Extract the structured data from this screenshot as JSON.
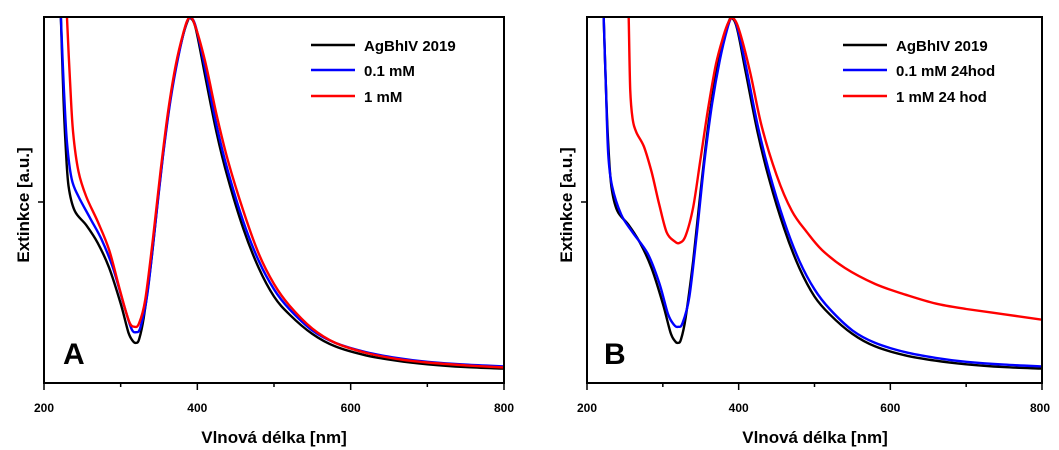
{
  "chart_data": [
    {
      "type": "line",
      "panel_label": "A",
      "xlabel": "Vlnová délka [nm]",
      "ylabel": "Extinkce [a.u.]",
      "xlim": [
        200,
        800
      ],
      "ylim": [
        0,
        1
      ],
      "x_tick_labels": [
        "200",
        "400",
        "600",
        "800"
      ],
      "legend_position": "top-right",
      "series": [
        {
          "name": "AgBhIV 2019",
          "color": "#000000",
          "points": [
            [
              222,
              1.0
            ],
            [
              225,
              0.8
            ],
            [
              228,
              0.65
            ],
            [
              232,
              0.53
            ],
            [
              240,
              0.46
            ],
            [
              255,
              0.42
            ],
            [
              270,
              0.37
            ],
            [
              285,
              0.3
            ],
            [
              300,
              0.2
            ],
            [
              310,
              0.12
            ],
            [
              316,
              0.095
            ],
            [
              320,
              0.09
            ],
            [
              324,
              0.1
            ],
            [
              330,
              0.16
            ],
            [
              340,
              0.32
            ],
            [
              350,
              0.52
            ],
            [
              360,
              0.7
            ],
            [
              370,
              0.84
            ],
            [
              380,
              0.94
            ],
            [
              387,
              0.99
            ],
            [
              391,
              1.0
            ],
            [
              398,
              0.97
            ],
            [
              410,
              0.84
            ],
            [
              425,
              0.68
            ],
            [
              440,
              0.55
            ],
            [
              460,
              0.41
            ],
            [
              480,
              0.3
            ],
            [
              500,
              0.22
            ],
            [
              520,
              0.17
            ],
            [
              550,
              0.115
            ],
            [
              580,
              0.08
            ],
            [
              620,
              0.055
            ],
            [
              660,
              0.04
            ],
            [
              700,
              0.03
            ],
            [
              750,
              0.022
            ],
            [
              800,
              0.018
            ]
          ]
        },
        {
          "name": "0.1 mM",
          "color": "#0000ff",
          "points": [
            [
              222,
              1.0
            ],
            [
              226,
              0.8
            ],
            [
              230,
              0.65
            ],
            [
              236,
              0.55
            ],
            [
              245,
              0.5
            ],
            [
              260,
              0.44
            ],
            [
              275,
              0.38
            ],
            [
              290,
              0.3
            ],
            [
              305,
              0.19
            ],
            [
              314,
              0.13
            ],
            [
              320,
              0.12
            ],
            [
              326,
              0.135
            ],
            [
              335,
              0.23
            ],
            [
              345,
              0.42
            ],
            [
              355,
              0.61
            ],
            [
              365,
              0.77
            ],
            [
              375,
              0.89
            ],
            [
              385,
              0.98
            ],
            [
              391,
              1.0
            ],
            [
              398,
              0.975
            ],
            [
              410,
              0.86
            ],
            [
              425,
              0.7
            ],
            [
              440,
              0.57
            ],
            [
              460,
              0.43
            ],
            [
              480,
              0.32
            ],
            [
              500,
              0.24
            ],
            [
              520,
              0.185
            ],
            [
              550,
              0.125
            ],
            [
              580,
              0.09
            ],
            [
              620,
              0.064
            ],
            [
              660,
              0.048
            ],
            [
              700,
              0.037
            ],
            [
              750,
              0.029
            ],
            [
              800,
              0.024
            ]
          ]
        },
        {
          "name": "1 mM",
          "color": "#ff0000",
          "points": [
            [
              230,
              1.0
            ],
            [
              234,
              0.82
            ],
            [
              238,
              0.68
            ],
            [
              245,
              0.57
            ],
            [
              255,
              0.5
            ],
            [
              270,
              0.43
            ],
            [
              285,
              0.35
            ],
            [
              300,
              0.23
            ],
            [
              311,
              0.15
            ],
            [
              318,
              0.135
            ],
            [
              324,
              0.145
            ],
            [
              332,
              0.21
            ],
            [
              342,
              0.38
            ],
            [
              352,
              0.57
            ],
            [
              362,
              0.74
            ],
            [
              372,
              0.87
            ],
            [
              382,
              0.96
            ],
            [
              389,
              1.0
            ],
            [
              396,
              0.985
            ],
            [
              410,
              0.88
            ],
            [
              425,
              0.73
            ],
            [
              440,
              0.6
            ],
            [
              460,
              0.46
            ],
            [
              480,
              0.34
            ],
            [
              500,
              0.255
            ],
            [
              520,
              0.195
            ],
            [
              550,
              0.13
            ],
            [
              580,
              0.09
            ],
            [
              620,
              0.062
            ],
            [
              660,
              0.045
            ],
            [
              700,
              0.035
            ],
            [
              750,
              0.027
            ],
            [
              800,
              0.021
            ]
          ]
        }
      ]
    },
    {
      "type": "line",
      "panel_label": "B",
      "xlabel": "Vlnová délka [nm]",
      "ylabel": "Extinkce [a.u.]",
      "xlim": [
        200,
        800
      ],
      "ylim": [
        0,
        1
      ],
      "x_tick_labels": [
        "200",
        "400",
        "600",
        "800"
      ],
      "legend_position": "top-right",
      "series": [
        {
          "name": "AgBhIV 2019",
          "color": "#000000",
          "points": [
            [
              222,
              1.0
            ],
            [
              225,
              0.8
            ],
            [
              228,
              0.65
            ],
            [
              232,
              0.53
            ],
            [
              240,
              0.46
            ],
            [
              255,
              0.42
            ],
            [
              270,
              0.37
            ],
            [
              285,
              0.3
            ],
            [
              300,
              0.2
            ],
            [
              310,
              0.12
            ],
            [
              316,
              0.095
            ],
            [
              320,
              0.09
            ],
            [
              324,
              0.1
            ],
            [
              330,
              0.16
            ],
            [
              340,
              0.32
            ],
            [
              350,
              0.52
            ],
            [
              360,
              0.7
            ],
            [
              370,
              0.84
            ],
            [
              380,
              0.94
            ],
            [
              387,
              0.99
            ],
            [
              391,
              1.0
            ],
            [
              398,
              0.97
            ],
            [
              410,
              0.84
            ],
            [
              425,
              0.68
            ],
            [
              440,
              0.55
            ],
            [
              460,
              0.41
            ],
            [
              480,
              0.3
            ],
            [
              500,
              0.22
            ],
            [
              520,
              0.17
            ],
            [
              550,
              0.115
            ],
            [
              580,
              0.08
            ],
            [
              620,
              0.055
            ],
            [
              660,
              0.04
            ],
            [
              700,
              0.03
            ],
            [
              750,
              0.022
            ],
            [
              800,
              0.018
            ]
          ]
        },
        {
          "name": "0.1 mM 24hod",
          "color": "#0000ff",
          "points": [
            [
              222,
              1.0
            ],
            [
              225,
              0.8
            ],
            [
              228,
              0.62
            ],
            [
              233,
              0.53
            ],
            [
              245,
              0.45
            ],
            [
              260,
              0.4
            ],
            [
              280,
              0.34
            ],
            [
              295,
              0.26
            ],
            [
              307,
              0.17
            ],
            [
              315,
              0.14
            ],
            [
              320,
              0.135
            ],
            [
              326,
              0.145
            ],
            [
              335,
              0.22
            ],
            [
              345,
              0.4
            ],
            [
              355,
              0.6
            ],
            [
              365,
              0.76
            ],
            [
              375,
              0.88
            ],
            [
              385,
              0.97
            ],
            [
              391,
              1.0
            ],
            [
              398,
              0.975
            ],
            [
              410,
              0.86
            ],
            [
              425,
              0.7
            ],
            [
              440,
              0.57
            ],
            [
              460,
              0.43
            ],
            [
              480,
              0.32
            ],
            [
              500,
              0.24
            ],
            [
              520,
              0.185
            ],
            [
              550,
              0.125
            ],
            [
              580,
              0.09
            ],
            [
              620,
              0.064
            ],
            [
              660,
              0.048
            ],
            [
              700,
              0.037
            ],
            [
              750,
              0.029
            ],
            [
              800,
              0.024
            ]
          ]
        },
        {
          "name": "1 mM  24 hod",
          "color": "#ff0000",
          "points": [
            [
              255,
              1.0
            ],
            [
              257,
              0.8
            ],
            [
              260,
              0.72
            ],
            [
              265,
              0.68
            ],
            [
              275,
              0.64
            ],
            [
              285,
              0.57
            ],
            [
              295,
              0.48
            ],
            [
              305,
              0.4
            ],
            [
              315,
              0.375
            ],
            [
              322,
              0.37
            ],
            [
              330,
              0.39
            ],
            [
              340,
              0.47
            ],
            [
              350,
              0.61
            ],
            [
              360,
              0.75
            ],
            [
              370,
              0.87
            ],
            [
              380,
              0.95
            ],
            [
              387,
              0.99
            ],
            [
              392,
              1.0
            ],
            [
              400,
              0.97
            ],
            [
              415,
              0.85
            ],
            [
              430,
              0.7
            ],
            [
              450,
              0.56
            ],
            [
              470,
              0.46
            ],
            [
              490,
              0.4
            ],
            [
              510,
              0.35
            ],
            [
              540,
              0.3
            ],
            [
              580,
              0.255
            ],
            [
              620,
              0.225
            ],
            [
              660,
              0.2
            ],
            [
              700,
              0.185
            ],
            [
              750,
              0.17
            ],
            [
              800,
              0.155
            ]
          ]
        }
      ]
    }
  ],
  "legend": {
    "panel_a": [
      "AgBhIV 2019",
      "0.1 mM",
      "1 mM"
    ],
    "panel_b": [
      "AgBhIV 2019",
      "0.1 mM 24hod",
      "1 mM  24 hod"
    ]
  }
}
